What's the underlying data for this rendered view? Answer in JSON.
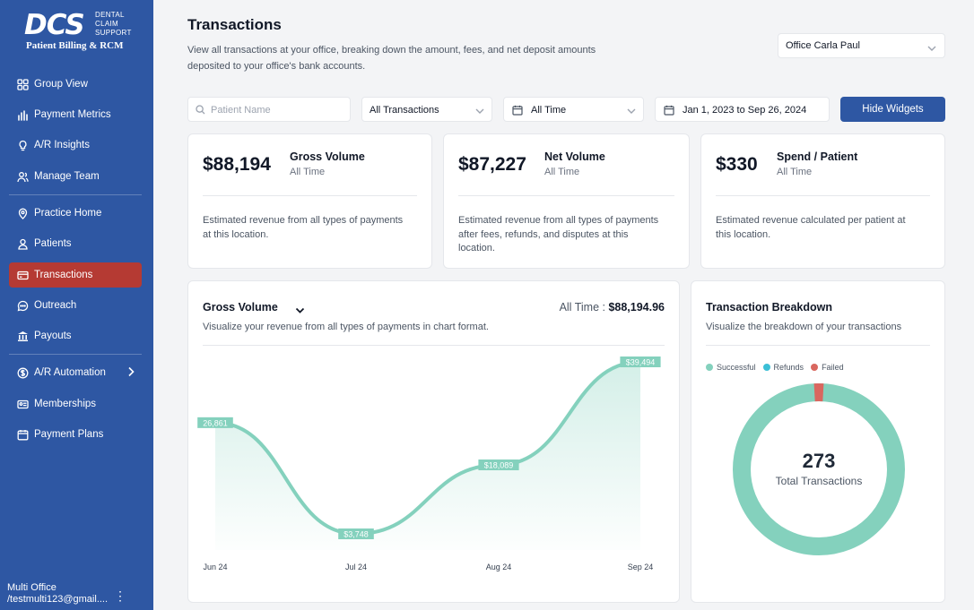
{
  "brand": {
    "mark": "DCS",
    "side": [
      "DENTAL",
      "CLAIM",
      "SUPPORT"
    ],
    "subtitle": "Patient Billing & RCM"
  },
  "sidebar": {
    "items": [
      {
        "label": "Group View",
        "icon": "grid-icon"
      },
      {
        "label": "Payment Metrics",
        "icon": "bar-chart-icon"
      },
      {
        "label": "A/R Insights",
        "icon": "lightbulb-icon"
      },
      {
        "label": "Manage Team",
        "icon": "team-icon"
      },
      {
        "label": "Practice Home",
        "icon": "location-pin-icon"
      },
      {
        "label": "Patients",
        "icon": "user-icon"
      },
      {
        "label": "Transactions",
        "icon": "card-icon"
      },
      {
        "label": "Outreach",
        "icon": "chat-icon"
      },
      {
        "label": "Payouts",
        "icon": "bank-icon"
      },
      {
        "label": "A/R Automation",
        "icon": "dollar-icon"
      },
      {
        "label": "Memberships",
        "icon": "membership-card-icon"
      },
      {
        "label": "Payment Plans",
        "icon": "calendar-icon"
      }
    ],
    "active": "Transactions",
    "user": {
      "name": "Multi Office",
      "email": "/testmulti123@gmail...."
    }
  },
  "header": {
    "title": "Transactions",
    "description": "View all transactions at your office, breaking down the amount, fees, and net deposit amounts deposited to your office's bank accounts.",
    "office": "Office Carla Paul"
  },
  "filters": {
    "search_placeholder": "Patient Name",
    "type": "All Transactions",
    "period": "All Time",
    "date_range": "Jan 1, 2023 to Sep 26, 2024",
    "hide_widgets": "Hide Widgets"
  },
  "stats": [
    {
      "value": "$88,194",
      "name": "Gross Volume",
      "period": "All Time",
      "text": [
        "Estimated revenue from all types of payments",
        "at this location."
      ]
    },
    {
      "value": "$87,227",
      "name": "Net Volume",
      "period": "All Time",
      "text": [
        "Estimated revenue from all types of payments",
        "after fees, refunds, and disputes at this",
        "location."
      ]
    },
    {
      "value": "$330",
      "name": "Spend / Patient",
      "period": "All Time",
      "text": [
        "Estimated revenue calculated per patient at",
        "this location."
      ]
    }
  ],
  "gross_chart": {
    "title": "Gross Volume",
    "total_label": "All Time : ",
    "total_value": "$88,194.96",
    "description": "Visualize your revenue from all types of payments in chart format."
  },
  "chart_data": {
    "type": "area",
    "categories": [
      "Jun 24",
      "Jul 24",
      "Aug 24",
      "Sep 24"
    ],
    "values": [
      26861,
      3748,
      18089,
      39494
    ],
    "data_labels": [
      "26,861",
      "$3,748",
      "$18,089",
      "$39,494"
    ],
    "color": "#84d1bd"
  },
  "breakdown": {
    "title": "Transaction Breakdown",
    "description": "Visualize the breakdown of your transactions",
    "legend": [
      {
        "label": "Successful",
        "color": "#84d1bd"
      },
      {
        "label": "Refunds",
        "color": "#3bbfd6"
      },
      {
        "label": "Failed",
        "color": "#d9675f"
      }
    ],
    "total": "273",
    "total_label": "Total Transactions",
    "failed_fraction": 0.018
  }
}
